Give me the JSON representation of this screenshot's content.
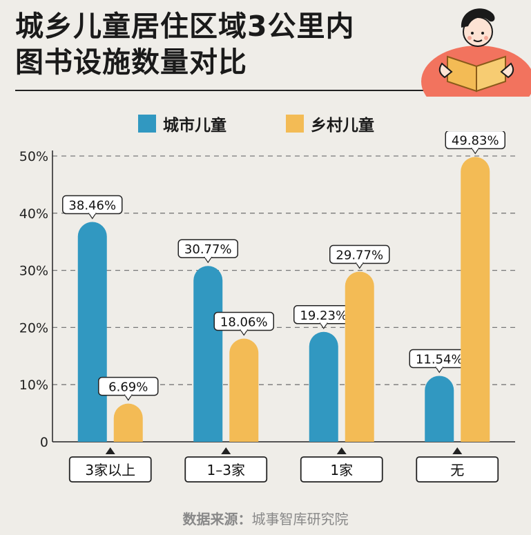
{
  "title": {
    "line1": "城乡儿童居住区域3公里内",
    "line2": "图书设施数量对比"
  },
  "legend": [
    {
      "label": "城市儿童",
      "color": "#3198c1"
    },
    {
      "label": "乡村儿童",
      "color": "#f3bb55"
    }
  ],
  "source": {
    "prefix": "数据来源：",
    "org": "城事智库研究院"
  },
  "chart_data": {
    "type": "bar",
    "categories": [
      "3家以上",
      "1–3家",
      "1家",
      "无"
    ],
    "series": [
      {
        "name": "城市儿童",
        "color": "#3198c1",
        "values": [
          38.46,
          30.77,
          19.23,
          11.54
        ]
      },
      {
        "name": "乡村儿童",
        "color": "#f3bb55",
        "values": [
          6.69,
          18.06,
          29.77,
          49.83
        ]
      }
    ],
    "data_labels": [
      [
        "38.46%",
        "30.77%",
        "19.23%",
        "11.54%"
      ],
      [
        "6.69%",
        "18.06%",
        "29.77%",
        "49.83%"
      ]
    ],
    "yticks": [
      {
        "value": 0,
        "label": "0"
      },
      {
        "value": 10,
        "label": "10%"
      },
      {
        "value": 20,
        "label": "20%"
      },
      {
        "value": 30,
        "label": "30%"
      },
      {
        "value": 40,
        "label": "40%"
      },
      {
        "value": 50,
        "label": "50%"
      }
    ],
    "ylim": [
      0,
      50
    ],
    "grid": true,
    "legend_position": "top-center"
  }
}
